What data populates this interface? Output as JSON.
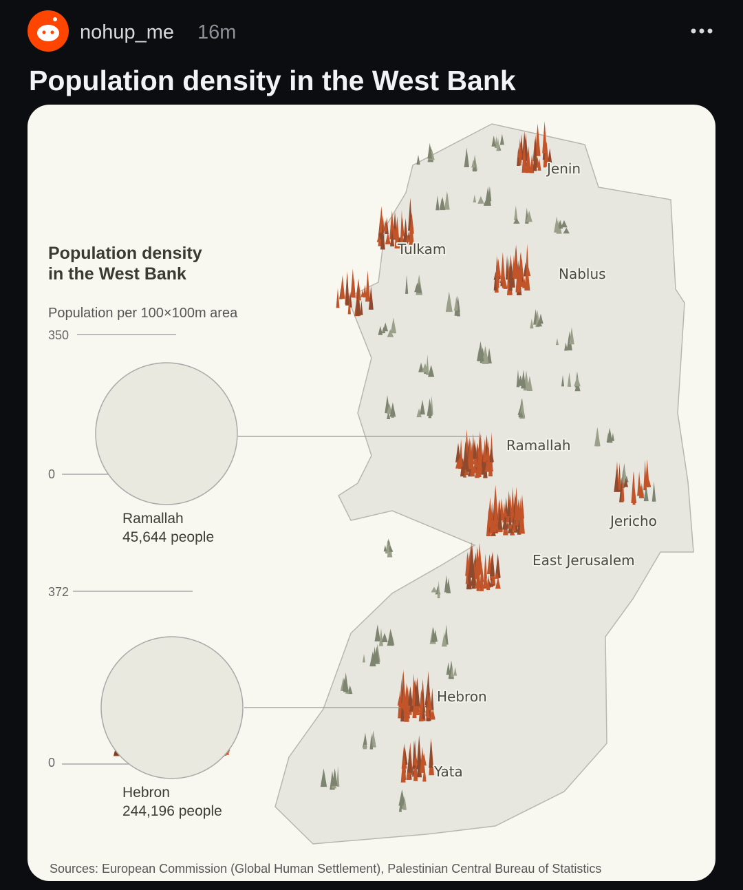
{
  "header": {
    "username": "nohup_me",
    "time": "16m"
  },
  "post": {
    "title": "Population density in the West Bank"
  },
  "infographic": {
    "title": [
      "Population density",
      "in the West Bank"
    ],
    "subtitle": "Population per 100×100m area",
    "insets": [
      {
        "scale_max": "350",
        "scale_min": "0",
        "city": "Ramallah",
        "population": "45,644 people"
      },
      {
        "scale_max": "372",
        "scale_min": "0",
        "city": "Hebron",
        "population": "244,196 people"
      }
    ],
    "map_labels": [
      "Jenin",
      "Tulkam",
      "Nablus",
      "Ramallah",
      "Jericho",
      "East Jerusalem",
      "Hebron",
      "Yata"
    ],
    "source": "Sources: European Commission (Global Human Settlement), Palestinian Central Bureau of Statistics"
  }
}
